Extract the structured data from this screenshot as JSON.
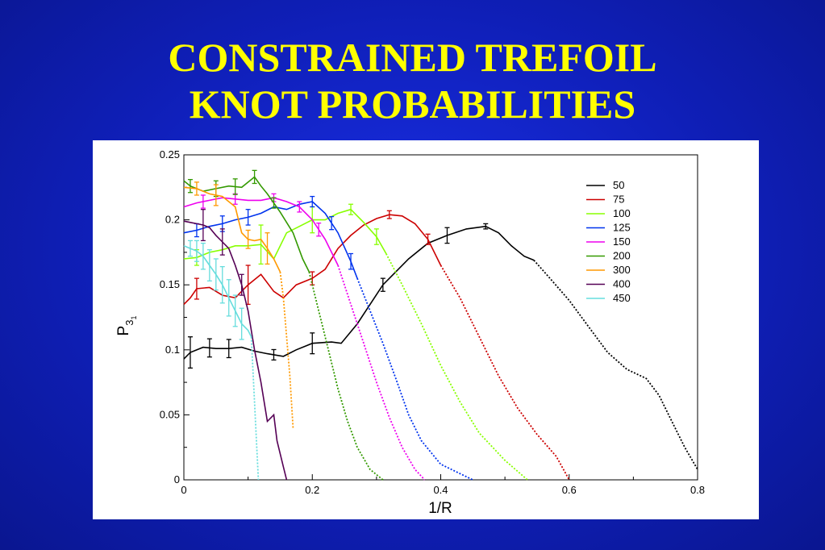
{
  "slide": {
    "title_line1": "CONSTRAINED TREFOIL",
    "title_line2": "KNOT PROBABILITIES"
  },
  "colors": {
    "background": "#1228d6",
    "title": "#ffff00"
  },
  "chart_data": {
    "type": "line",
    "title": "CONSTRAINED TREFOIL KNOT PROBABILITIES",
    "xlabel": "1/R",
    "ylabel": "P",
    "ylabel_sub": "3",
    "ylabel_subsub": "1",
    "xlim": [
      0,
      0.8
    ],
    "ylim": [
      0,
      0.25
    ],
    "xticks": [
      "0",
      "0.2",
      "0.4",
      "0.6",
      "0.8"
    ],
    "yticks": [
      "0",
      "0.05",
      "0.1",
      "0.15",
      "0.2",
      "0.25"
    ],
    "legend_position": "top-right",
    "note": "solid segments carry error bars; dotted tails are extrapolated",
    "series": [
      {
        "name": "50",
        "color": "#000000",
        "solid": [
          [
            0,
            0.093
          ],
          [
            0.01,
            0.098
          ],
          [
            0.03,
            0.102
          ],
          [
            0.05,
            0.101
          ],
          [
            0.07,
            0.101
          ],
          [
            0.09,
            0.102
          ],
          [
            0.11,
            0.099
          ],
          [
            0.13,
            0.097
          ],
          [
            0.155,
            0.095
          ],
          [
            0.175,
            0.1
          ],
          [
            0.2,
            0.105
          ],
          [
            0.23,
            0.106
          ],
          [
            0.245,
            0.105
          ],
          [
            0.27,
            0.12
          ],
          [
            0.29,
            0.135
          ],
          [
            0.31,
            0.15
          ],
          [
            0.33,
            0.16
          ],
          [
            0.35,
            0.17
          ],
          [
            0.38,
            0.182
          ],
          [
            0.41,
            0.188
          ],
          [
            0.44,
            0.193
          ],
          [
            0.47,
            0.195
          ],
          [
            0.49,
            0.19
          ],
          [
            0.51,
            0.18
          ],
          [
            0.53,
            0.172
          ],
          [
            0.545,
            0.169
          ]
        ],
        "dotted": [
          [
            0.545,
            0.169
          ],
          [
            0.57,
            0.155
          ],
          [
            0.6,
            0.138
          ],
          [
            0.63,
            0.118
          ],
          [
            0.66,
            0.098
          ],
          [
            0.69,
            0.085
          ],
          [
            0.72,
            0.078
          ],
          [
            0.74,
            0.065
          ],
          [
            0.76,
            0.045
          ],
          [
            0.78,
            0.025
          ],
          [
            0.8,
            0.008
          ]
        ],
        "errors": [
          [
            0.01,
            0.012
          ],
          [
            0.04,
            0.007
          ],
          [
            0.07,
            0.007
          ],
          [
            0.14,
            0.004
          ],
          [
            0.2,
            0.008
          ],
          [
            0.31,
            0.005
          ],
          [
            0.41,
            0.006
          ],
          [
            0.47,
            0.002
          ]
        ]
      },
      {
        "name": "75",
        "color": "#cc0000",
        "solid": [
          [
            0,
            0.135
          ],
          [
            0.01,
            0.14
          ],
          [
            0.02,
            0.147
          ],
          [
            0.04,
            0.148
          ],
          [
            0.06,
            0.142
          ],
          [
            0.08,
            0.14
          ],
          [
            0.1,
            0.15
          ],
          [
            0.12,
            0.158
          ],
          [
            0.14,
            0.145
          ],
          [
            0.155,
            0.14
          ],
          [
            0.175,
            0.15
          ],
          [
            0.2,
            0.155
          ],
          [
            0.22,
            0.162
          ],
          [
            0.24,
            0.178
          ],
          [
            0.26,
            0.188
          ],
          [
            0.28,
            0.196
          ],
          [
            0.3,
            0.201
          ],
          [
            0.32,
            0.204
          ],
          [
            0.34,
            0.203
          ],
          [
            0.36,
            0.197
          ],
          [
            0.38,
            0.185
          ],
          [
            0.4,
            0.165
          ]
        ],
        "dotted": [
          [
            0.4,
            0.165
          ],
          [
            0.43,
            0.14
          ],
          [
            0.46,
            0.11
          ],
          [
            0.49,
            0.08
          ],
          [
            0.52,
            0.055
          ],
          [
            0.55,
            0.035
          ],
          [
            0.58,
            0.018
          ],
          [
            0.6,
            0.0
          ]
        ],
        "errors": [
          [
            0.02,
            0.008
          ],
          [
            0.1,
            0.015
          ],
          [
            0.2,
            0.005
          ],
          [
            0.32,
            0.003
          ],
          [
            0.38,
            0.004
          ]
        ]
      },
      {
        "name": "100",
        "color": "#88ff00",
        "solid": [
          [
            0,
            0.17
          ],
          [
            0.02,
            0.171
          ],
          [
            0.04,
            0.175
          ],
          [
            0.06,
            0.177
          ],
          [
            0.08,
            0.18
          ],
          [
            0.1,
            0.18
          ],
          [
            0.12,
            0.181
          ],
          [
            0.14,
            0.17
          ],
          [
            0.16,
            0.19
          ],
          [
            0.18,
            0.195
          ],
          [
            0.2,
            0.2
          ],
          [
            0.22,
            0.2
          ],
          [
            0.24,
            0.205
          ],
          [
            0.26,
            0.208
          ],
          [
            0.28,
            0.198
          ],
          [
            0.3,
            0.187
          ],
          [
            0.315,
            0.174
          ]
        ],
        "dotted": [
          [
            0.315,
            0.174
          ],
          [
            0.34,
            0.15
          ],
          [
            0.37,
            0.12
          ],
          [
            0.4,
            0.088
          ],
          [
            0.43,
            0.06
          ],
          [
            0.46,
            0.036
          ],
          [
            0.5,
            0.015
          ],
          [
            0.535,
            0.0
          ]
        ],
        "errors": [
          [
            0.02,
            0.006
          ],
          [
            0.12,
            0.015
          ],
          [
            0.2,
            0.01
          ],
          [
            0.26,
            0.004
          ],
          [
            0.3,
            0.006
          ]
        ]
      },
      {
        "name": "125",
        "color": "#0033ee",
        "solid": [
          [
            0,
            0.19
          ],
          [
            0.02,
            0.192
          ],
          [
            0.04,
            0.195
          ],
          [
            0.06,
            0.197
          ],
          [
            0.08,
            0.2
          ],
          [
            0.1,
            0.202
          ],
          [
            0.12,
            0.205
          ],
          [
            0.14,
            0.21
          ],
          [
            0.16,
            0.208
          ],
          [
            0.18,
            0.212
          ],
          [
            0.2,
            0.214
          ],
          [
            0.22,
            0.205
          ],
          [
            0.24,
            0.19
          ],
          [
            0.26,
            0.168
          ],
          [
            0.27,
            0.155
          ]
        ],
        "dotted": [
          [
            0.27,
            0.155
          ],
          [
            0.29,
            0.13
          ],
          [
            0.31,
            0.105
          ],
          [
            0.33,
            0.078
          ],
          [
            0.35,
            0.05
          ],
          [
            0.37,
            0.03
          ],
          [
            0.4,
            0.012
          ],
          [
            0.45,
            0.0
          ]
        ],
        "errors": [
          [
            0.02,
            0.005
          ],
          [
            0.06,
            0.006
          ],
          [
            0.1,
            0.006
          ],
          [
            0.2,
            0.004
          ],
          [
            0.23,
            0.005
          ],
          [
            0.26,
            0.006
          ]
        ]
      },
      {
        "name": "150",
        "color": "#ee00ee",
        "solid": [
          [
            0,
            0.21
          ],
          [
            0.02,
            0.213
          ],
          [
            0.04,
            0.215
          ],
          [
            0.06,
            0.217
          ],
          [
            0.08,
            0.216
          ],
          [
            0.1,
            0.215
          ],
          [
            0.12,
            0.215
          ],
          [
            0.14,
            0.217
          ],
          [
            0.16,
            0.214
          ],
          [
            0.18,
            0.21
          ],
          [
            0.2,
            0.2
          ],
          [
            0.22,
            0.185
          ],
          [
            0.24,
            0.165
          ]
        ],
        "dotted": [
          [
            0.24,
            0.165
          ],
          [
            0.26,
            0.135
          ],
          [
            0.28,
            0.105
          ],
          [
            0.3,
            0.075
          ],
          [
            0.32,
            0.048
          ],
          [
            0.34,
            0.025
          ],
          [
            0.36,
            0.008
          ],
          [
            0.375,
            0.0
          ]
        ],
        "errors": [
          [
            0.03,
            0.005
          ],
          [
            0.08,
            0.004
          ],
          [
            0.14,
            0.003
          ],
          [
            0.18,
            0.004
          ],
          [
            0.21,
            0.005
          ]
        ]
      },
      {
        "name": "200",
        "color": "#339900",
        "solid": [
          [
            0,
            0.23
          ],
          [
            0.01,
            0.226
          ],
          [
            0.03,
            0.222
          ],
          [
            0.05,
            0.224
          ],
          [
            0.07,
            0.226
          ],
          [
            0.09,
            0.225
          ],
          [
            0.11,
            0.233
          ],
          [
            0.12,
            0.226
          ],
          [
            0.13,
            0.22
          ],
          [
            0.15,
            0.206
          ],
          [
            0.17,
            0.19
          ],
          [
            0.185,
            0.17
          ],
          [
            0.195,
            0.16
          ]
        ],
        "dotted": [
          [
            0.195,
            0.16
          ],
          [
            0.21,
            0.13
          ],
          [
            0.225,
            0.1
          ],
          [
            0.24,
            0.07
          ],
          [
            0.255,
            0.045
          ],
          [
            0.27,
            0.025
          ],
          [
            0.29,
            0.008
          ],
          [
            0.31,
            0.0
          ]
        ],
        "errors": [
          [
            0.01,
            0.005
          ],
          [
            0.05,
            0.006
          ],
          [
            0.08,
            0.006
          ],
          [
            0.11,
            0.005
          ],
          [
            0.14,
            0.004
          ]
        ]
      },
      {
        "name": "300",
        "color": "#ff9900",
        "solid": [
          [
            0,
            0.225
          ],
          [
            0.02,
            0.224
          ],
          [
            0.04,
            0.22
          ],
          [
            0.06,
            0.218
          ],
          [
            0.08,
            0.21
          ],
          [
            0.09,
            0.19
          ],
          [
            0.1,
            0.185
          ],
          [
            0.11,
            0.184
          ],
          [
            0.12,
            0.185
          ],
          [
            0.13,
            0.178
          ],
          [
            0.14,
            0.17
          ],
          [
            0.15,
            0.16
          ]
        ],
        "dotted": [
          [
            0.15,
            0.16
          ],
          [
            0.155,
            0.14
          ],
          [
            0.16,
            0.11
          ],
          [
            0.165,
            0.08
          ],
          [
            0.17,
            0.04
          ]
        ],
        "errors": [
          [
            0.02,
            0.005
          ],
          [
            0.05,
            0.008
          ],
          [
            0.1,
            0.007
          ],
          [
            0.13,
            0.012
          ]
        ]
      },
      {
        "name": "400",
        "color": "#550055",
        "solid": [
          [
            0,
            0.199
          ],
          [
            0.01,
            0.198
          ],
          [
            0.02,
            0.197
          ],
          [
            0.03,
            0.196
          ],
          [
            0.04,
            0.194
          ],
          [
            0.05,
            0.188
          ],
          [
            0.06,
            0.183
          ],
          [
            0.07,
            0.178
          ],
          [
            0.08,
            0.165
          ],
          [
            0.09,
            0.15
          ],
          [
            0.1,
            0.13
          ],
          [
            0.11,
            0.1
          ],
          [
            0.12,
            0.075
          ],
          [
            0.13,
            0.045
          ],
          [
            0.14,
            0.05
          ],
          [
            0.145,
            0.03
          ],
          [
            0.155,
            0.01
          ],
          [
            0.16,
            0.0
          ]
        ],
        "dotted": [],
        "errors": [
          [
            0.03,
            0.012
          ],
          [
            0.06,
            0.01
          ],
          [
            0.09,
            0.008
          ]
        ]
      },
      {
        "name": "450",
        "color": "#66dddd",
        "solid": [
          [
            0,
            0.18
          ],
          [
            0.01,
            0.178
          ],
          [
            0.02,
            0.176
          ],
          [
            0.03,
            0.172
          ],
          [
            0.04,
            0.165
          ],
          [
            0.05,
            0.158
          ],
          [
            0.06,
            0.15
          ],
          [
            0.07,
            0.14
          ],
          [
            0.08,
            0.13
          ],
          [
            0.09,
            0.12
          ],
          [
            0.1,
            0.115
          ],
          [
            0.105,
            0.11
          ]
        ],
        "dotted": [
          [
            0.105,
            0.11
          ],
          [
            0.108,
            0.08
          ],
          [
            0.111,
            0.05
          ],
          [
            0.114,
            0.02
          ],
          [
            0.116,
            0.0
          ]
        ],
        "errors": [
          [
            0.01,
            0.006
          ],
          [
            0.02,
            0.008
          ],
          [
            0.03,
            0.01
          ],
          [
            0.04,
            0.012
          ],
          [
            0.05,
            0.012
          ],
          [
            0.06,
            0.014
          ],
          [
            0.07,
            0.014
          ],
          [
            0.08,
            0.012
          ],
          [
            0.09,
            0.012
          ]
        ]
      }
    ]
  }
}
